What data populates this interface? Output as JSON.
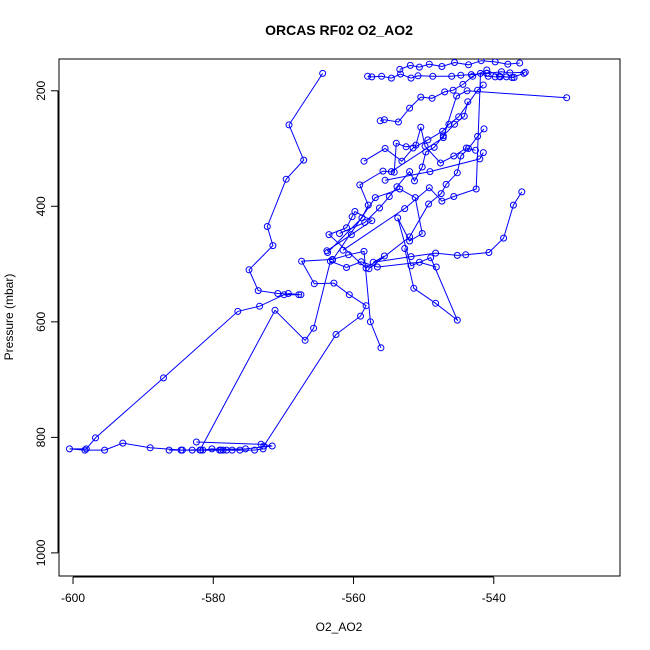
{
  "chart_data": {
    "type": "scatter",
    "title": "ORCAS RF02 O2_AO2",
    "xlabel": "O2_AO2",
    "ylabel": "Pressure (mbar)",
    "xlim": [
      -602,
      -522
    ],
    "ylim": [
      1040,
      145
    ],
    "y_reversed": true,
    "x_ticks": [
      -600,
      -580,
      -560,
      -540
    ],
    "x_tick_labels": [
      "-600",
      "-580",
      "-560",
      "-540"
    ],
    "y_ticks": [
      200,
      400,
      600,
      800,
      1000
    ],
    "y_tick_labels": [
      "200",
      "400",
      "600",
      "800",
      "1000"
    ],
    "grid": false,
    "legend": "none",
    "color": "#0000ff",
    "series": [
      {
        "x": [
          -564.4,
          -569.2,
          -567.1,
          -569.6,
          -572.3,
          -571.5,
          -574.9,
          -573.6,
          -570.8,
          -567.5,
          -569.3,
          -567.8,
          -569.9,
          -573.4,
          -576.5,
          -587.1,
          -596.8,
          -598.1,
          -600.5,
          -598.3,
          -595.5,
          -592.9,
          -589.0,
          -584.4,
          -581.8,
          -578.6,
          -574.1,
          -572.9
        ],
        "y": [
          170,
          259,
          320,
          353,
          435,
          468,
          510,
          546,
          551,
          553,
          551,
          553,
          553,
          573,
          582,
          697,
          801,
          820,
          820,
          822,
          822,
          810,
          818,
          822,
          822,
          822,
          822,
          820
        ]
      },
      {
        "x": [
          -582.4,
          -573.2,
          -571.6,
          -575.4,
          -584.6,
          -586.3,
          -579.1,
          -583.0,
          -577.3,
          -580.2,
          -581.5,
          -576.2,
          -578.1,
          -578.9
        ],
        "y": [
          808,
          812,
          815,
          820,
          822,
          822,
          822,
          822,
          822,
          820,
          822,
          822,
          822,
          822
        ]
      },
      {
        "x": [
          -581.9,
          -571.2,
          -566.9,
          -565.7,
          -563.3,
          -561.0,
          -558.9,
          -556.6,
          -550.6,
          -548.2
        ],
        "y": [
          822,
          580,
          632,
          611,
          495,
          506,
          496,
          505,
          497,
          505
        ]
      },
      {
        "x": [
          -572.8,
          -562.5,
          -559.0,
          -558.2,
          -560.6,
          -562.8,
          -565.6,
          -567.4,
          -563.0,
          -560.7,
          -558.5,
          -557.6,
          -556.1
        ],
        "y": [
          815,
          622,
          590,
          572,
          553,
          533,
          534,
          495,
          492,
          484,
          478,
          600,
          645
        ]
      },
      {
        "x": [
          -563.0,
          -556.9,
          -553.4,
          -551.2,
          -550.2,
          -552.0,
          -553.7,
          -551.8,
          -549.0,
          -545.2,
          -548.3,
          -551.4,
          -552.7
        ],
        "y": [
          493,
          385,
          370,
          385,
          447,
          460,
          420,
          503,
          489,
          597,
          568,
          542,
          473
        ]
      },
      {
        "x": [
          -563.8,
          -560.3,
          -557.4,
          -559.8,
          -560.2,
          -561.0,
          -563.5,
          -558.2,
          -555.6,
          -557.2,
          -551.8,
          -548.3,
          -545.2,
          -544.0,
          -540.7,
          -538.6,
          -537.2,
          -536.0
        ],
        "y": [
          477,
          449,
          425,
          409,
          418,
          437,
          449,
          507,
          486,
          497,
          487,
          481,
          485,
          484,
          480,
          455,
          398,
          375
        ]
      },
      {
        "x": [
          -563.7,
          -558.8,
          -557.9,
          -559.1,
          -555.8,
          -554.2,
          -553.9,
          -552.5,
          -551.1,
          -550.4,
          -549.8,
          -547.6,
          -545.7,
          -543.9,
          -542.6
        ],
        "y": [
          480,
          420,
          398,
          363,
          339,
          341,
          291,
          297,
          294,
          263,
          296,
          325,
          313,
          299,
          303
        ]
      },
      {
        "x": [
          -558.5,
          -555.5,
          -553.1,
          -551.5,
          -549.4,
          -547.3,
          -546.4,
          -545.0,
          -542.3,
          -541.5
        ],
        "y": [
          322,
          300,
          322,
          299,
          285,
          270,
          258,
          245,
          199,
          190
        ]
      },
      {
        "x": [
          -562.0,
          -558.4,
          -556.3,
          -554.9,
          -553.8,
          -552.0,
          -551.3,
          -550.2,
          -549.7,
          -548.5,
          -547.2,
          -545.6,
          -544.2,
          -543.7
        ],
        "y": [
          447,
          428,
          403,
          383,
          366,
          340,
          356,
          332,
          306,
          298,
          278,
          258,
          244,
          219
        ]
      },
      {
        "x": [
          -556.2,
          -555.6,
          -553.6,
          -552.0,
          -550.4,
          -548.8,
          -547.0,
          -545.8,
          -544.4,
          -543.0,
          -541.0,
          -539.2,
          -537.4,
          -535.7
        ],
        "y": [
          252,
          250,
          254,
          230,
          211,
          213,
          202,
          199,
          189,
          175,
          164,
          175,
          177,
          170
        ]
      },
      {
        "x": [
          -558.0,
          -557.4,
          -556.0,
          -554.6,
          -553.3,
          -551.8,
          -550.8,
          -548.7,
          -546.0,
          -544.7,
          -543.2,
          -541.0,
          -538.9,
          -537.7,
          -535.5
        ],
        "y": [
          175,
          176,
          175,
          178,
          171,
          178,
          174,
          175,
          175,
          173,
          172,
          170,
          167,
          169,
          168
        ]
      },
      {
        "x": [
          -553.4,
          -551.9,
          -550.6,
          -549.2,
          -547.4,
          -545.6,
          -543.6,
          -541.8,
          -539.8,
          -538.0,
          -536.3
        ],
        "y": [
          163,
          156,
          159,
          154,
          158,
          151,
          155,
          148,
          150,
          154,
          152
        ]
      },
      {
        "x": [
          -561.5,
          -552.7,
          -549.2,
          -547.4,
          -545.7,
          -542.5,
          -541.9,
          -540.8,
          -539.8,
          -539.1,
          -538.2,
          -537.1
        ],
        "y": [
          476,
          404,
          368,
          391,
          383,
          370,
          170,
          175,
          176,
          176,
          176,
          177
        ]
      },
      {
        "x": [
          -554.6,
          -547.2,
          -545.3,
          -543.8,
          -529.6
        ],
        "y": [
          340,
          281,
          209,
          200,
          212
        ]
      },
      {
        "x": [
          -557.8,
          -552.0,
          -549.3,
          -547.5,
          -546.8,
          -545.2,
          -544.7,
          -543.6,
          -542.3,
          -541.4
        ],
        "y": [
          508,
          453,
          396,
          378,
          362,
          342,
          313,
          300,
          279,
          266
        ]
      },
      {
        "x": [
          -555.5,
          -549.1,
          -542.0,
          -541.5
        ],
        "y": [
          355,
          340,
          318,
          307
        ]
      }
    ]
  }
}
